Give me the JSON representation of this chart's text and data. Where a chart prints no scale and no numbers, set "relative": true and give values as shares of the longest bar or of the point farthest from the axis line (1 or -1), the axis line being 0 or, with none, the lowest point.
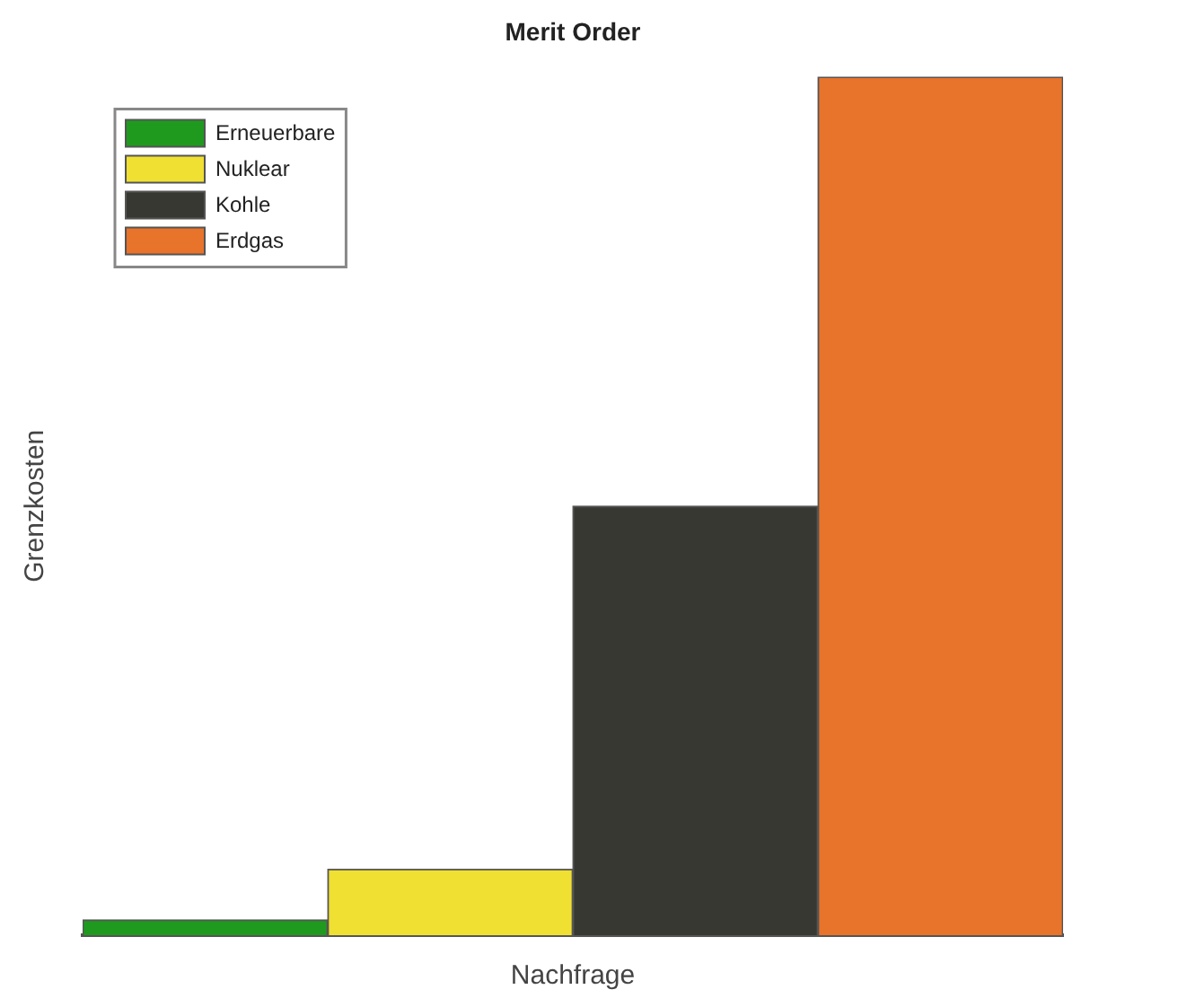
{
  "chart_data": {
    "type": "bar",
    "title": "Merit Order",
    "xlabel": "Nachfrage",
    "ylabel": "Grenzkosten",
    "relative": true,
    "stacked": true,
    "categories": [
      null,
      null,
      null,
      null
    ],
    "series": [
      {
        "name": "Erneuerbare",
        "color": "#1f9a1f",
        "values": [
          0.018,
          null,
          null,
          null
        ]
      },
      {
        "name": "Nuklear",
        "color": "#f0e032",
        "values": [
          null,
          0.077,
          null,
          null
        ]
      },
      {
        "name": "Kohle",
        "color": "#383833",
        "values": [
          null,
          null,
          0.5,
          null
        ]
      },
      {
        "name": "Erdgas",
        "color": "#e8732a",
        "values": [
          null,
          null,
          null,
          1
        ]
      }
    ],
    "legend": "top left"
  }
}
